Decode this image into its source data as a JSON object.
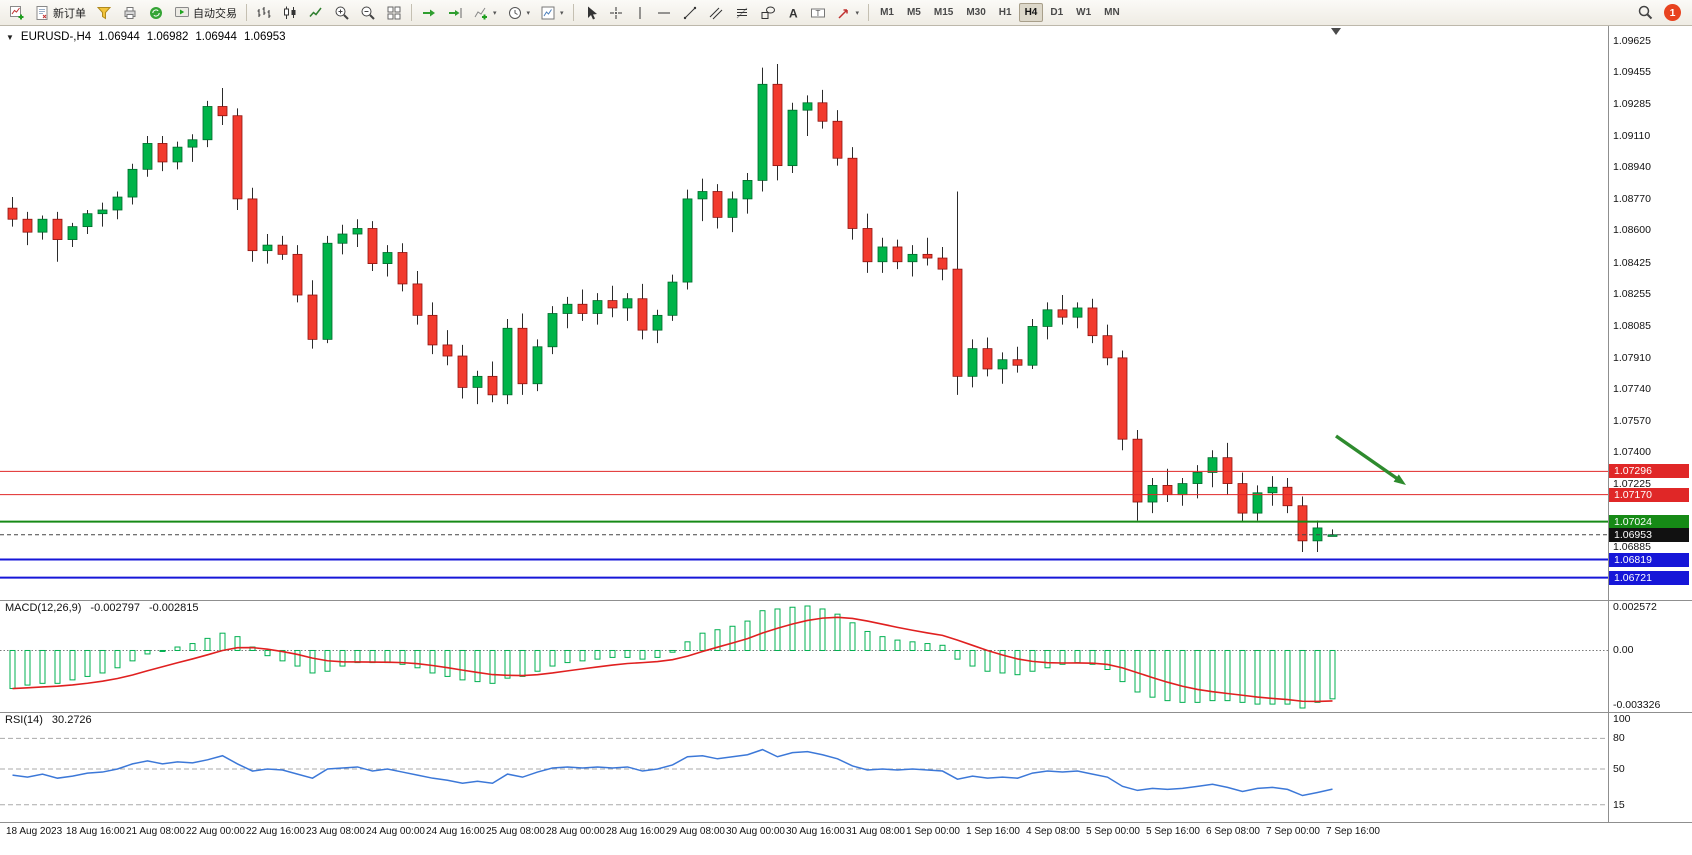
{
  "toolbar": {
    "buttons": {
      "new_order_label": "新订单",
      "autotrade_label": "自动交易"
    },
    "timeframes": [
      "M1",
      "M5",
      "M15",
      "M30",
      "H1",
      "H4",
      "D1",
      "W1",
      "MN"
    ],
    "active_timeframe": "H4",
    "notification_count": "1"
  },
  "chart": {
    "header": {
      "symbol_period": "EURUSD-,H4",
      "open": "1.06944",
      "high": "1.06982",
      "low": "1.06944",
      "close": "1.06953"
    },
    "price_lines": [
      {
        "value": 1.07296,
        "label": "1.07296",
        "color": "#e02727",
        "width": 1,
        "dash": "",
        "tag_bg": "#e02727"
      },
      {
        "value": 1.0717,
        "label": "1.07170",
        "color": "#e02727",
        "width": 1,
        "dash": "",
        "tag_bg": "#e02727"
      },
      {
        "value": 1.07024,
        "label": "1.07024",
        "color": "#168a16",
        "width": 2,
        "dash": "",
        "tag_bg": "#168a16"
      },
      {
        "value": 1.06953,
        "label": "1.06953",
        "color": "#444444",
        "width": 1,
        "dash": "4,3",
        "tag_bg": "#111111"
      },
      {
        "value": 1.06819,
        "label": "1.06819",
        "color": "#1616d8",
        "width": 2,
        "dash": "",
        "tag_bg": "#1616d8"
      },
      {
        "value": 1.06721,
        "label": "1.06721",
        "color": "#1616d8",
        "width": 2,
        "dash": "",
        "tag_bg": "#1616d8"
      }
    ],
    "arrow": {
      "color": "#2e8b2e",
      "direction": "down-right"
    },
    "colors": {
      "bull": "#00b44a",
      "bear": "#f23b2e",
      "wick": "#2b2b2b",
      "macd_histogram": "#00b050",
      "macd_signal": "#e02020",
      "rsi_line": "#3c78d8"
    }
  },
  "chart_data": {
    "type": "candlestick",
    "symbol": "EURUSD-",
    "period": "H4",
    "price_range": {
      "min": 1.066,
      "max": 1.097
    },
    "price_axis_ticks": [
      "1.09625",
      "1.09455",
      "1.09285",
      "1.09110",
      "1.08940",
      "1.08770",
      "1.08600",
      "1.08425",
      "1.08255",
      "1.08085",
      "1.07910",
      "1.07740",
      "1.07570",
      "1.07400",
      "1.07225",
      "1.06885"
    ],
    "time_labels": [
      "18 Aug 2023",
      "18 Aug 16:00",
      "21 Aug 08:00",
      "22 Aug 00:00",
      "22 Aug 16:00",
      "23 Aug 08:00",
      "24 Aug 00:00",
      "24 Aug 16:00",
      "25 Aug 08:00",
      "28 Aug 00:00",
      "28 Aug 16:00",
      "29 Aug 08:00",
      "30 Aug 00:00",
      "30 Aug 16:00",
      "31 Aug 08:00",
      "1 Sep 00:00",
      "1 Sep 16:00",
      "4 Sep 08:00",
      "5 Sep 00:00",
      "5 Sep 16:00",
      "6 Sep 08:00",
      "7 Sep 00:00",
      "7 Sep 16:00"
    ],
    "candles_ohlc": [
      [
        1.0872,
        1.0878,
        1.0862,
        1.0866
      ],
      [
        1.0866,
        1.087,
        1.0852,
        1.0859
      ],
      [
        1.0859,
        1.0868,
        1.0855,
        1.0866
      ],
      [
        1.0866,
        1.087,
        1.0843,
        1.0855
      ],
      [
        1.0855,
        1.0864,
        1.0851,
        1.0862
      ],
      [
        1.0862,
        1.0871,
        1.0858,
        1.0869
      ],
      [
        1.0869,
        1.0875,
        1.0862,
        1.0871
      ],
      [
        1.0871,
        1.0881,
        1.0866,
        1.0878
      ],
      [
        1.0878,
        1.0896,
        1.0874,
        1.0893
      ],
      [
        1.0893,
        1.0911,
        1.0889,
        1.0907
      ],
      [
        1.0907,
        1.0911,
        1.0892,
        1.0897
      ],
      [
        1.0897,
        1.0908,
        1.0893,
        1.0905
      ],
      [
        1.0905,
        1.0912,
        1.0897,
        1.0909
      ],
      [
        1.0909,
        1.093,
        1.0905,
        1.0927
      ],
      [
        1.0927,
        1.0937,
        1.0917,
        1.0922
      ],
      [
        1.0922,
        1.0926,
        1.0871,
        1.0877
      ],
      [
        1.0877,
        1.0883,
        1.0843,
        1.0849
      ],
      [
        1.0849,
        1.0858,
        1.0842,
        1.0852
      ],
      [
        1.0852,
        1.0857,
        1.0844,
        1.0847
      ],
      [
        1.0847,
        1.0852,
        1.0821,
        1.0825
      ],
      [
        1.0825,
        1.0833,
        1.0796,
        1.0801
      ],
      [
        1.0801,
        1.0857,
        1.0799,
        1.0853
      ],
      [
        1.0853,
        1.0863,
        1.0847,
        1.0858
      ],
      [
        1.0858,
        1.0866,
        1.0851,
        1.0861
      ],
      [
        1.0861,
        1.0865,
        1.0838,
        1.0842
      ],
      [
        1.0842,
        1.0852,
        1.0835,
        1.0848
      ],
      [
        1.0848,
        1.0853,
        1.0827,
        1.0831
      ],
      [
        1.0831,
        1.0838,
        1.0809,
        1.0814
      ],
      [
        1.0814,
        1.0821,
        1.0793,
        1.0798
      ],
      [
        1.0798,
        1.0806,
        1.0787,
        1.0792
      ],
      [
        1.0792,
        1.0798,
        1.0769,
        1.0775
      ],
      [
        1.0775,
        1.0784,
        1.0766,
        1.0781
      ],
      [
        1.0781,
        1.0789,
        1.0767,
        1.0771
      ],
      [
        1.0771,
        1.0812,
        1.0766,
        1.0807
      ],
      [
        1.0807,
        1.0815,
        1.0771,
        1.0777
      ],
      [
        1.0777,
        1.0801,
        1.0773,
        1.0797
      ],
      [
        1.0797,
        1.0819,
        1.0793,
        1.0815
      ],
      [
        1.0815,
        1.0824,
        1.0807,
        1.082
      ],
      [
        1.082,
        1.0828,
        1.0811,
        1.0815
      ],
      [
        1.0815,
        1.0826,
        1.0809,
        1.0822
      ],
      [
        1.0822,
        1.083,
        1.0813,
        1.0818
      ],
      [
        1.0818,
        1.0826,
        1.0811,
        1.0823
      ],
      [
        1.0823,
        1.0831,
        1.0801,
        1.0806
      ],
      [
        1.0806,
        1.0817,
        1.0799,
        1.0814
      ],
      [
        1.0814,
        1.0836,
        1.0811,
        1.0832
      ],
      [
        1.0832,
        1.0882,
        1.0828,
        1.0877
      ],
      [
        1.0877,
        1.0888,
        1.0865,
        1.0881
      ],
      [
        1.0881,
        1.0885,
        1.0861,
        1.0867
      ],
      [
        1.0867,
        1.0881,
        1.0859,
        1.0877
      ],
      [
        1.0877,
        1.0891,
        1.0869,
        1.0887
      ],
      [
        1.0887,
        1.0948,
        1.0881,
        1.0939
      ],
      [
        1.0939,
        1.095,
        1.0887,
        1.0895
      ],
      [
        1.0895,
        1.0929,
        1.0891,
        1.0925
      ],
      [
        1.0925,
        1.0933,
        1.0911,
        1.0929
      ],
      [
        1.0929,
        1.0936,
        1.0915,
        1.0919
      ],
      [
        1.0919,
        1.0925,
        1.0895,
        1.0899
      ],
      [
        1.0899,
        1.0905,
        1.0855,
        1.0861
      ],
      [
        1.0861,
        1.0869,
        1.0837,
        1.0843
      ],
      [
        1.0843,
        1.0856,
        1.0837,
        1.0851
      ],
      [
        1.0851,
        1.0855,
        1.0839,
        1.0843
      ],
      [
        1.0843,
        1.0852,
        1.0835,
        1.0847
      ],
      [
        1.0847,
        1.0856,
        1.0841,
        1.0845
      ],
      [
        1.0845,
        1.0851,
        1.0833,
        1.0839
      ],
      [
        1.0839,
        1.0881,
        1.0771,
        1.0781
      ],
      [
        1.0781,
        1.0801,
        1.0775,
        1.0796
      ],
      [
        1.0796,
        1.0802,
        1.0781,
        1.0785
      ],
      [
        1.0785,
        1.0794,
        1.0777,
        1.079
      ],
      [
        1.079,
        1.0797,
        1.0783,
        1.0787
      ],
      [
        1.0787,
        1.0812,
        1.0785,
        1.0808
      ],
      [
        1.0808,
        1.0821,
        1.0801,
        1.0817
      ],
      [
        1.0817,
        1.0825,
        1.0809,
        1.0813
      ],
      [
        1.0813,
        1.0821,
        1.0807,
        1.0818
      ],
      [
        1.0818,
        1.0823,
        1.0799,
        1.0803
      ],
      [
        1.0803,
        1.0809,
        1.0787,
        1.0791
      ],
      [
        1.0791,
        1.0795,
        1.0741,
        1.0747
      ],
      [
        1.0747,
        1.0752,
        1.0703,
        1.0713
      ],
      [
        1.0713,
        1.0726,
        1.0707,
        1.0722
      ],
      [
        1.0722,
        1.0731,
        1.0713,
        1.0717
      ],
      [
        1.0717,
        1.0726,
        1.0711,
        1.0723
      ],
      [
        1.0723,
        1.0733,
        1.0715,
        1.0729
      ],
      [
        1.0729,
        1.0741,
        1.0721,
        1.0737
      ],
      [
        1.0737,
        1.0745,
        1.0717,
        1.0723
      ],
      [
        1.0723,
        1.0729,
        1.0702,
        1.0707
      ],
      [
        1.0707,
        1.0722,
        1.0703,
        1.0718
      ],
      [
        1.0718,
        1.0727,
        1.0711,
        1.0721
      ],
      [
        1.0721,
        1.0726,
        1.0707,
        1.0711
      ],
      [
        1.0711,
        1.0716,
        1.0686,
        1.0692
      ],
      [
        1.0692,
        1.0703,
        1.0686,
        1.0699
      ],
      [
        1.06944,
        1.06982,
        1.06944,
        1.06953
      ]
    ],
    "macd": {
      "name": "MACD(12,26,9)",
      "value_main": "-0.002797",
      "value_signal": "-0.002815",
      "scale": [
        "0.002572",
        "0.00",
        "-0.003326"
      ],
      "values": [
        -0.0022,
        -0.002,
        -0.0019,
        -0.0019,
        -0.0017,
        -0.0015,
        -0.0013,
        -0.001,
        -0.0006,
        -0.0002,
        0.0,
        0.0002,
        0.0004,
        0.0007,
        0.001,
        0.0008,
        0.0002,
        -0.0003,
        -0.0006,
        -0.0009,
        -0.0013,
        -0.0012,
        -0.0009,
        -0.0007,
        -0.0007,
        -0.0007,
        -0.0008,
        -0.001,
        -0.0013,
        -0.0015,
        -0.0017,
        -0.0018,
        -0.0019,
        -0.0016,
        -0.0015,
        -0.0012,
        -0.0009,
        -0.0007,
        -0.0006,
        -0.0005,
        -0.0004,
        -0.0004,
        -0.0005,
        -0.0004,
        -0.0001,
        0.0005,
        0.001,
        0.0012,
        0.0014,
        0.0017,
        0.0023,
        0.0024,
        0.0025,
        0.002572,
        0.0024,
        0.0021,
        0.0016,
        0.0011,
        0.0008,
        0.0006,
        0.0005,
        0.0004,
        0.0003,
        -0.0005,
        -0.0009,
        -0.0012,
        -0.0013,
        -0.0014,
        -0.0012,
        -0.001,
        -0.0008,
        -0.0007,
        -0.0008,
        -0.0011,
        -0.0018,
        -0.0024,
        -0.0027,
        -0.0029,
        -0.003,
        -0.003,
        -0.0029,
        -0.0029,
        -0.003,
        -0.0031,
        -0.0031,
        -0.0031,
        -0.003326,
        -0.003,
        -0.002797
      ]
    },
    "rsi": {
      "name": "RSI(14)",
      "value": "30.2726",
      "scale": [
        "100",
        "80",
        "50",
        "15"
      ],
      "levels": [
        80,
        50,
        15
      ],
      "values": [
        44,
        42,
        45,
        41,
        43,
        46,
        47,
        50,
        55,
        58,
        55,
        57,
        56,
        59,
        63,
        55,
        48,
        50,
        49,
        45,
        41,
        50,
        51,
        52,
        48,
        50,
        47,
        44,
        41,
        39,
        36,
        38,
        36,
        45,
        42,
        47,
        51,
        52,
        51,
        52,
        51,
        52,
        48,
        50,
        54,
        62,
        63,
        60,
        62,
        64,
        69,
        62,
        66,
        67,
        64,
        60,
        53,
        49,
        50,
        49,
        50,
        49,
        48,
        40,
        43,
        41,
        42,
        41,
        46,
        48,
        47,
        48,
        45,
        42,
        33,
        29,
        31,
        30,
        31,
        33,
        35,
        32,
        28,
        31,
        32,
        30,
        24,
        27,
        30.27
      ]
    }
  }
}
